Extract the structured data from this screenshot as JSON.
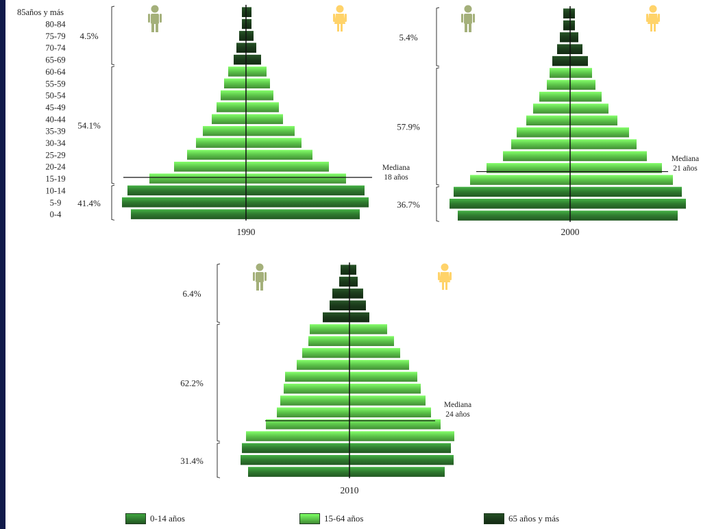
{
  "colors": {
    "frame": "#101a4a",
    "age_0_14": "#2f7a2f",
    "age_15_64": "#5cc44a",
    "age_65_plus": "#1b3a1b",
    "male_icon": "#a4b07a",
    "female_icon": "#ffd36a",
    "axis": "#111111",
    "bracket": "#333333"
  },
  "icons": {
    "male": "male-person-icon",
    "female": "female-person-icon"
  },
  "age_labels": [
    "0-4",
    "5-9",
    "10-14",
    "15-19",
    "20-24",
    "25-29",
    "30-34",
    "35-39",
    "40-44",
    "45-49",
    "50-54",
    "55-59",
    "60-64",
    "65-69",
    "70-74",
    "75-79",
    "80-84",
    "85años y más"
  ],
  "legend": [
    {
      "key": "age_0_14",
      "label": "0-14 años"
    },
    {
      "key": "age_15_64",
      "label": "15-64 años"
    },
    {
      "key": "age_65_plus",
      "label": "65 años y más"
    }
  ],
  "chart_data": [
    {
      "type": "bar",
      "title": "1990",
      "orientation": "horizontal-pyramid",
      "categories": [
        "0-4",
        "5-9",
        "10-14",
        "15-19",
        "20-24",
        "25-29",
        "30-34",
        "35-39",
        "40-44",
        "45-49",
        "50-54",
        "55-59",
        "60-64",
        "65-69",
        "70-74",
        "75-79",
        "80-84",
        "85años y más"
      ],
      "series": [
        {
          "name": "Hombres",
          "values": [
            168,
            181,
            173,
            141,
            105,
            86,
            73,
            63,
            50,
            43,
            37,
            32,
            26,
            18,
            14,
            10,
            6,
            6
          ]
        },
        {
          "name": "Mujeres",
          "values": [
            166,
            179,
            173,
            146,
            121,
            97,
            81,
            71,
            54,
            48,
            40,
            35,
            30,
            22,
            15,
            11,
            8,
            8
          ]
        }
      ],
      "group_shares": {
        "age_0_14": "41.4%",
        "age_15_64": "54.1%",
        "age_65_plus": "4.5%"
      },
      "median": {
        "label": "Mediana",
        "value": "18 años",
        "age_years": 18
      }
    },
    {
      "type": "bar",
      "title": "2000",
      "orientation": "horizontal-pyramid",
      "categories": [
        "0-4",
        "5-9",
        "10-14",
        "15-19",
        "20-24",
        "25-29",
        "30-34",
        "35-39",
        "40-44",
        "45-49",
        "50-54",
        "55-59",
        "60-64",
        "65-69",
        "70-74",
        "75-79",
        "80-84",
        "85años y más"
      ],
      "series": [
        {
          "name": "Hombres",
          "values": [
            164,
            176,
            170,
            146,
            122,
            98,
            86,
            78,
            64,
            54,
            45,
            34,
            30,
            26,
            19,
            15,
            10,
            10
          ]
        },
        {
          "name": "Mujeres",
          "values": [
            157,
            169,
            163,
            150,
            134,
            112,
            97,
            86,
            69,
            56,
            46,
            37,
            32,
            26,
            18,
            12,
            7,
            7
          ]
        }
      ],
      "group_shares": {
        "age_0_14": "36.7%",
        "age_15_64": "57.9%",
        "age_65_plus": "5.4%"
      },
      "median": {
        "label": "Mediana",
        "value": "21 años",
        "age_years": 21
      }
    },
    {
      "type": "bar",
      "title": "2010",
      "orientation": "horizontal-pyramid",
      "categories": [
        "0-4",
        "5-9",
        "10-14",
        "15-19",
        "20-24",
        "25-29",
        "30-34",
        "35-39",
        "40-44",
        "45-49",
        "50-54",
        "55-59",
        "60-64",
        "65-69",
        "70-74",
        "75-79",
        "80-84",
        "85años y más"
      ],
      "series": [
        {
          "name": "Hombres",
          "values": [
            148,
            159,
            157,
            151,
            122,
            106,
            101,
            96,
            94,
            77,
            69,
            60,
            58,
            39,
            29,
            25,
            15,
            13
          ]
        },
        {
          "name": "Mujeres",
          "values": [
            139,
            152,
            148,
            153,
            133,
            119,
            111,
            104,
            99,
            87,
            74,
            65,
            55,
            29,
            24,
            20,
            12,
            10
          ]
        }
      ],
      "group_shares": {
        "age_0_14": "31.4%",
        "age_15_64": "62.2%",
        "age_65_plus": "6.4%"
      },
      "median": {
        "label": "Mediana",
        "value": "24 años",
        "age_years": 24
      }
    }
  ]
}
